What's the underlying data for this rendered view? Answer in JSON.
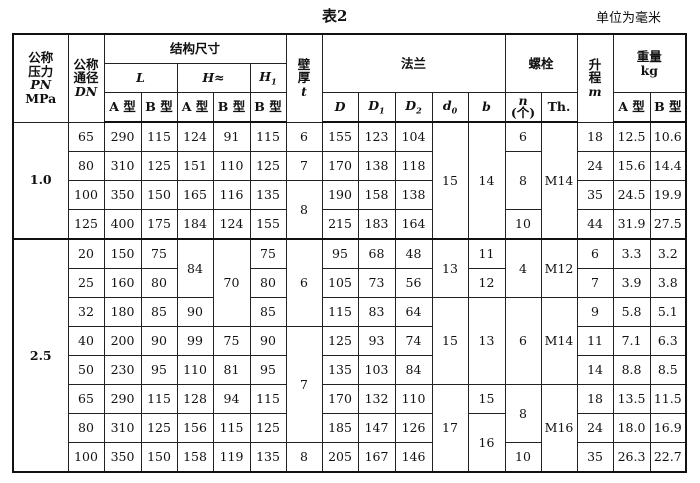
{
  "title": "表2",
  "unit": "单位为毫米",
  "header": {
    "pn": [
      "公称",
      "压力",
      "PN",
      "MPa"
    ],
    "dn": [
      "公称",
      "通径",
      "DN"
    ],
    "struct": "结构尺寸",
    "L": "L",
    "H": "H≈",
    "H1": "H",
    "H1_sub": "1",
    "wall": [
      "壁",
      "厚",
      "t"
    ],
    "flange": "法兰",
    "bolt": "螺栓",
    "lift": [
      "升",
      "程",
      "m"
    ],
    "weight": [
      "重量",
      "kg"
    ],
    "typeA": "A 型",
    "typeB": "B 型",
    "D": "D",
    "D1": "D",
    "D1_sub": "1",
    "D2": "D",
    "D2_sub": "2",
    "d0": "d",
    "d0_sub": "0",
    "b": "b",
    "n": [
      "n",
      "(个)"
    ],
    "th": "Th."
  },
  "body": {
    "rows": [
      [
        "1.0",
        "65",
        "290",
        "115",
        "124",
        "91",
        "115",
        "6",
        "155",
        "123",
        "104",
        "15",
        "14",
        "6",
        "M14",
        "18",
        "12.5",
        "10.6"
      ],
      [
        "80",
        "310",
        "125",
        "151",
        "110",
        "125",
        "7",
        "170",
        "138",
        "118",
        "8",
        "24",
        "15.6",
        "14.4"
      ],
      [
        "100",
        "350",
        "150",
        "165",
        "116",
        "135",
        "8",
        "190",
        "158",
        "138",
        "35",
        "24.5",
        "19.9"
      ],
      [
        "125",
        "400",
        "175",
        "184",
        "124",
        "155",
        "215",
        "183",
        "164",
        "10",
        "44",
        "31.9",
        "27.5"
      ],
      [
        "2.5",
        "20",
        "150",
        "75",
        "84",
        "70",
        "75",
        "6",
        "95",
        "68",
        "48",
        "13",
        "11",
        "4",
        "M12",
        "6",
        "3.3",
        "3.2"
      ],
      [
        "25",
        "160",
        "80",
        "80",
        "105",
        "73",
        "56",
        "12",
        "7",
        "3.9",
        "3.8"
      ],
      [
        "32",
        "180",
        "85",
        "90",
        "85",
        "115",
        "83",
        "64",
        "15",
        "13",
        "6",
        "M14",
        "9",
        "5.8",
        "5.1"
      ],
      [
        "40",
        "200",
        "90",
        "99",
        "75",
        "90",
        "7",
        "125",
        "93",
        "74",
        "11",
        "7.1",
        "6.3"
      ],
      [
        "50",
        "230",
        "95",
        "110",
        "81",
        "95",
        "135",
        "103",
        "84",
        "14",
        "8.8",
        "8.5"
      ],
      [
        "65",
        "290",
        "115",
        "128",
        "94",
        "115",
        "170",
        "132",
        "110",
        "17",
        "15",
        "8",
        "M16",
        "18",
        "13.5",
        "11.5"
      ],
      [
        "80",
        "310",
        "125",
        "156",
        "115",
        "125",
        "185",
        "147",
        "126",
        "16",
        "24",
        "18.0",
        "16.9"
      ],
      [
        "100",
        "350",
        "150",
        "158",
        "119",
        "135",
        "8",
        "205",
        "167",
        "146",
        "10",
        "35",
        "26.3",
        "22.7"
      ]
    ]
  }
}
